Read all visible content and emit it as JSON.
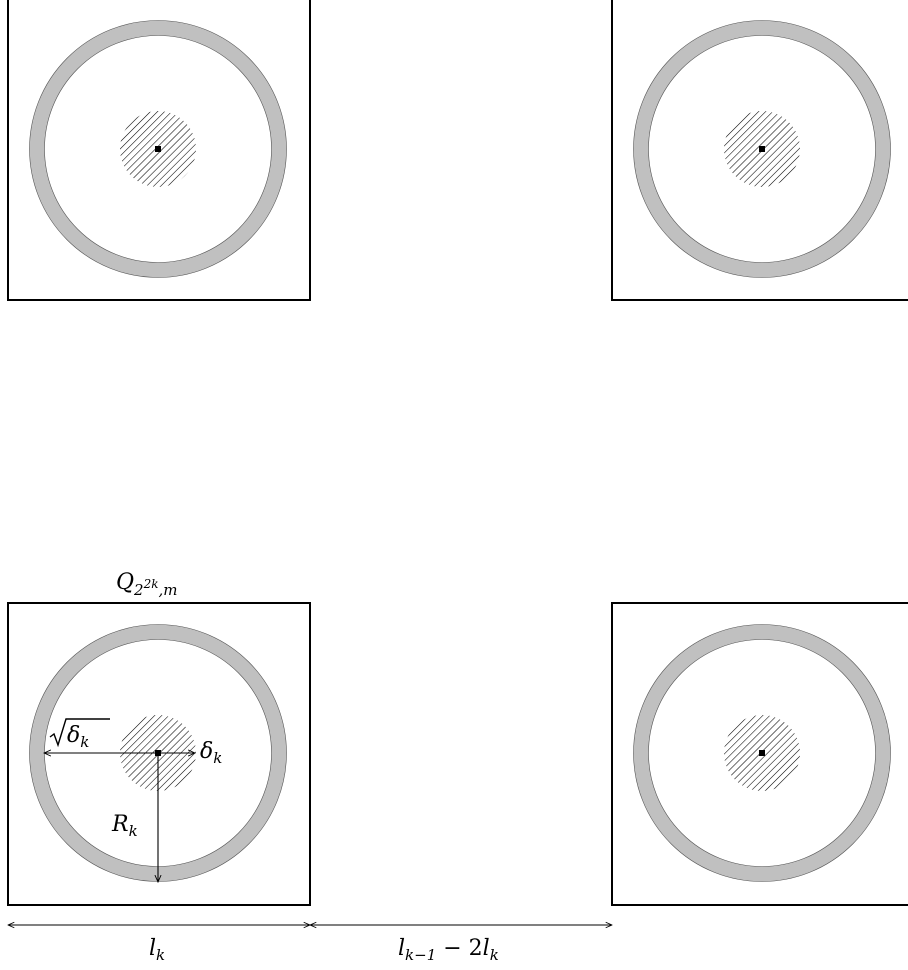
{
  "labels": {
    "cube_base": "Q",
    "cube_sub": "2",
    "cube_sub_exp": "2k",
    "cube_sub_tail": ",m",
    "sqrt_delta_symbol": "δ",
    "sqrt_delta_sub": "k",
    "delta_symbol": "δ",
    "delta_sub": "k",
    "radius_symbol": "R",
    "radius_sub": "k",
    "side_symbol": "l",
    "side_sub": "k",
    "gap_symbol_1": "l",
    "gap_sub_1": "k−1",
    "gap_operator": " − 2",
    "gap_symbol_2": "l",
    "gap_sub_2": "k"
  },
  "colors": {
    "annulus": "#c0c0c0",
    "stroke": "#000000",
    "hatch": "#000000"
  }
}
